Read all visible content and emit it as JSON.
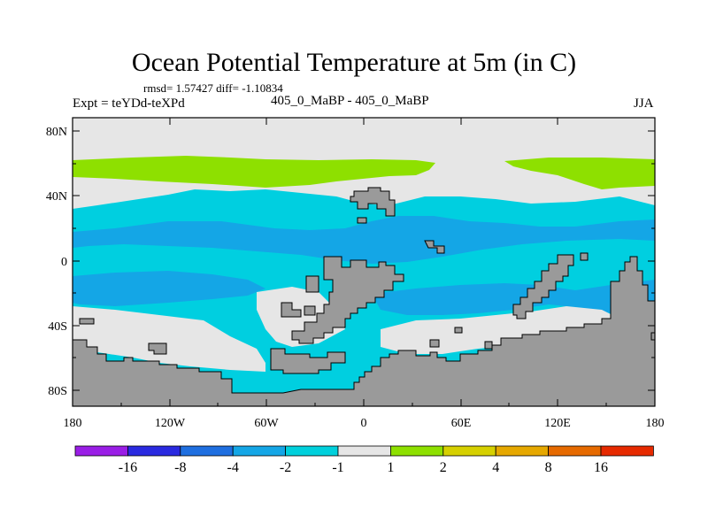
{
  "title": "Ocean Potential Temperature at 5m (in C)",
  "stats": "rmsd= 1.57427  diff= -1.10834",
  "left_label": "Expt = teYDd-teXPd",
  "center_label": "405_0_MaBP - 405_0_MaBP",
  "right_label": "JJA",
  "map": {
    "lat_ticks": [
      "80N",
      "40N",
      "0",
      "40S",
      "80S"
    ],
    "lon_ticks": [
      "180",
      "120W",
      "60W",
      "0",
      "60E",
      "120E",
      "180"
    ],
    "land_color": "#9a9a9a",
    "background_field": "#00cfe0"
  },
  "colorbar": {
    "colors": [
      "#9a1ee6",
      "#2a2ae0",
      "#1f6fe0",
      "#14a6e6",
      "#00d0dc",
      "#e6e6e6",
      "#8ee000",
      "#d6d000",
      "#e6a800",
      "#e66a00",
      "#e62a00"
    ],
    "labels": [
      "-16",
      "-8",
      "-4",
      "-2",
      "-1",
      "1",
      "2",
      "4",
      "8",
      "16"
    ]
  },
  "chart_data": {
    "type": "heatmap",
    "title": "Ocean Potential Temperature at 5m (in C)",
    "variable": "temperature difference (C)",
    "season": "JJA",
    "experiment": "teYDd-teXPd",
    "rmsd": 1.57427,
    "diff": -1.10834,
    "xlim": [
      -180,
      180
    ],
    "ylim": [
      -90,
      90
    ],
    "contour_levels": [
      -16,
      -8,
      -4,
      -2,
      -1,
      1,
      2,
      4,
      8,
      16
    ]
  }
}
